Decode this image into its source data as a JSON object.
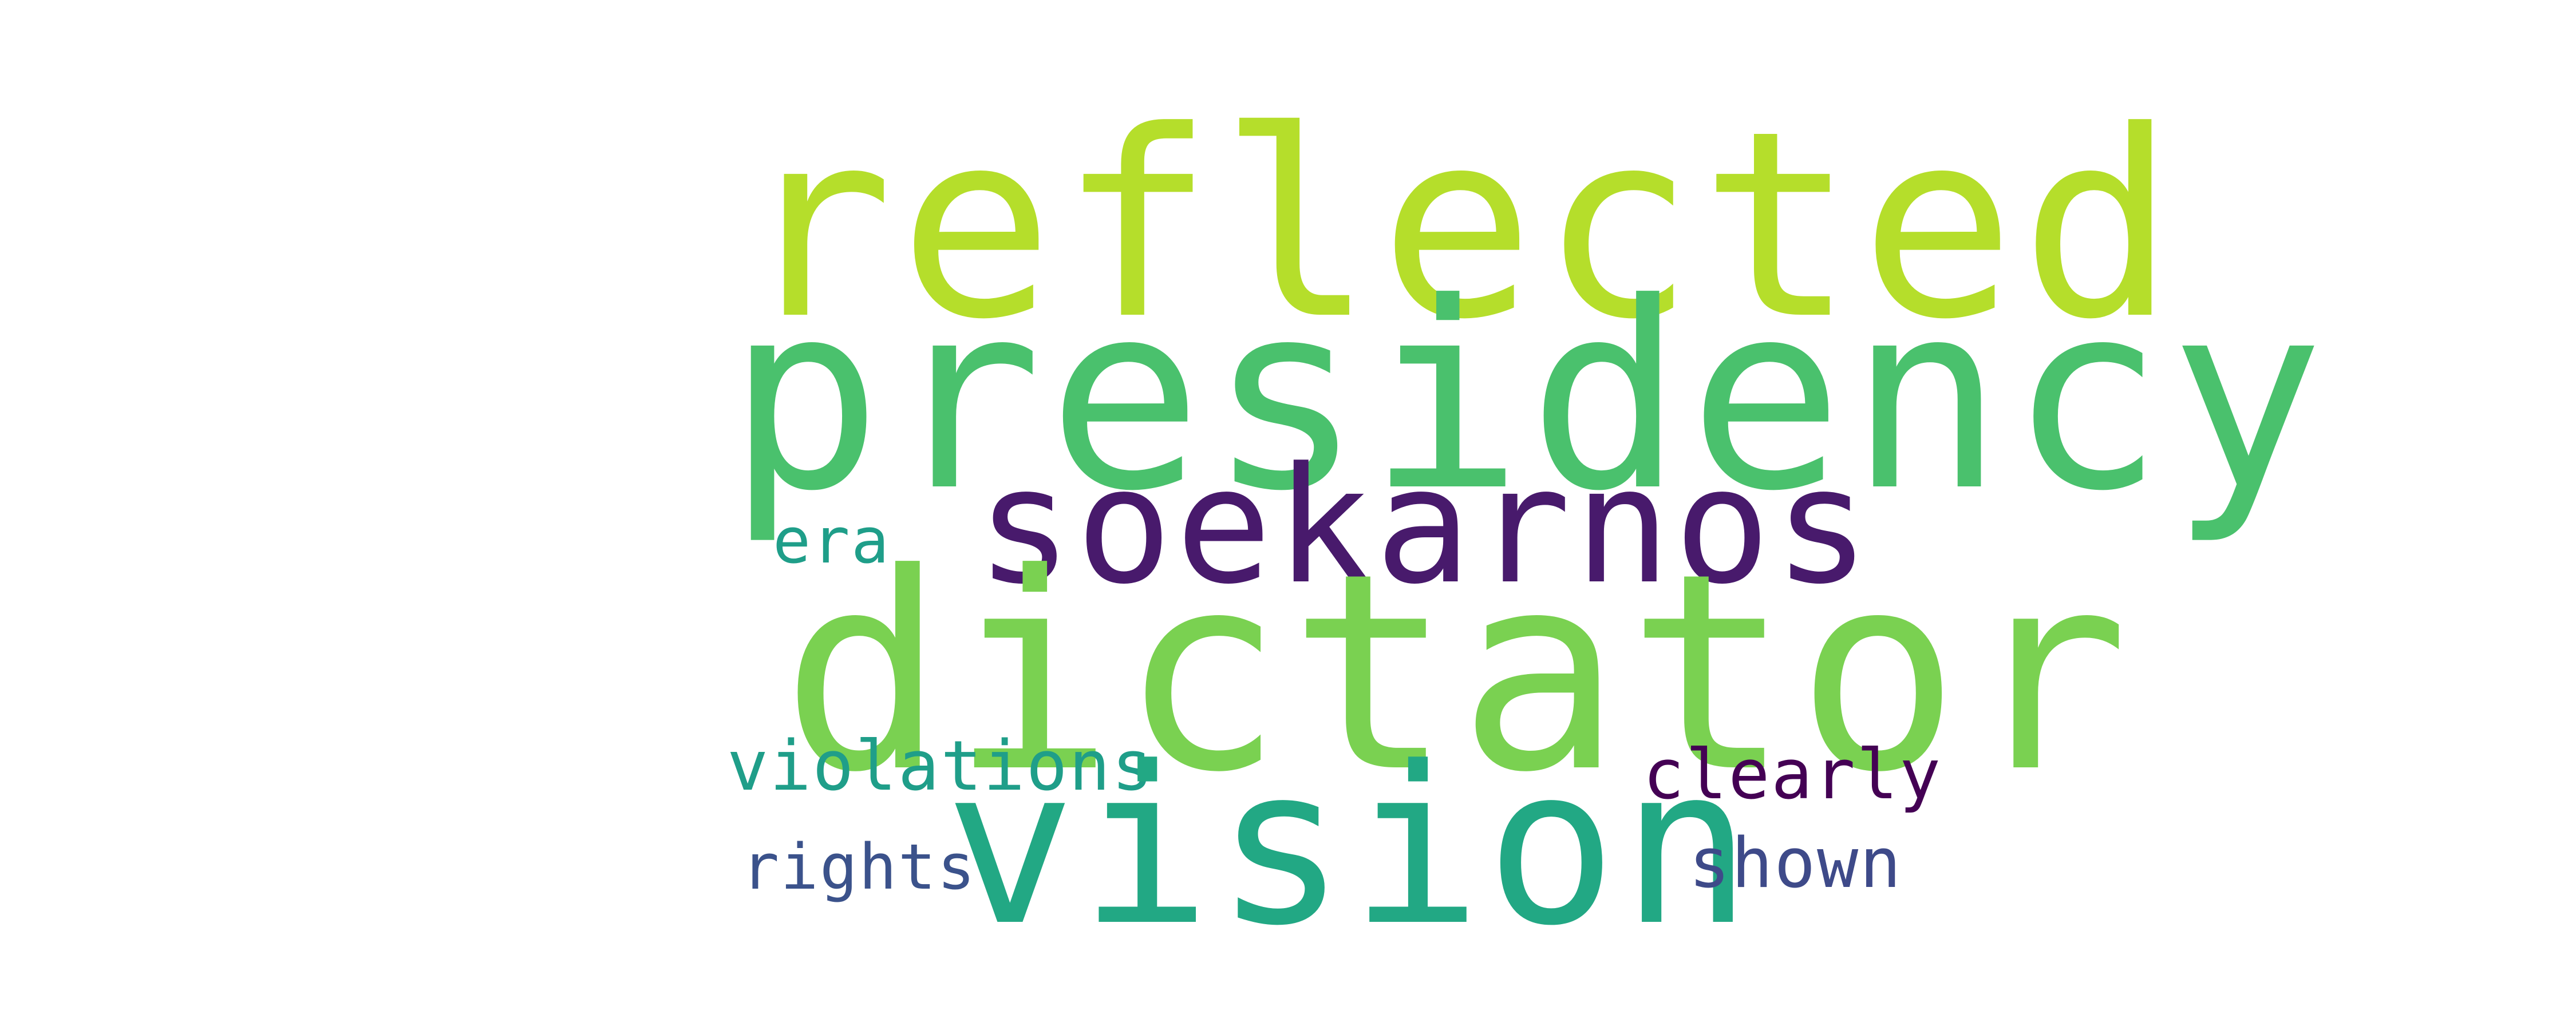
{
  "words": [
    {
      "text": "reflected",
      "color": "#b5de2b"
    },
    {
      "text": "presidency",
      "color": "#4ac16d"
    },
    {
      "text": "soekarnos",
      "color": "#481a6c"
    },
    {
      "text": "era",
      "color": "#1f9e89"
    },
    {
      "text": "dictator",
      "color": "#7ad151"
    },
    {
      "text": "violations",
      "color": "#1f9e89"
    },
    {
      "text": "vision",
      "color": "#22a884"
    },
    {
      "text": "clearly",
      "color": "#440154"
    },
    {
      "text": "rights",
      "color": "#3b528b"
    },
    {
      "text": "shown",
      "color": "#3e4a89"
    }
  ]
}
